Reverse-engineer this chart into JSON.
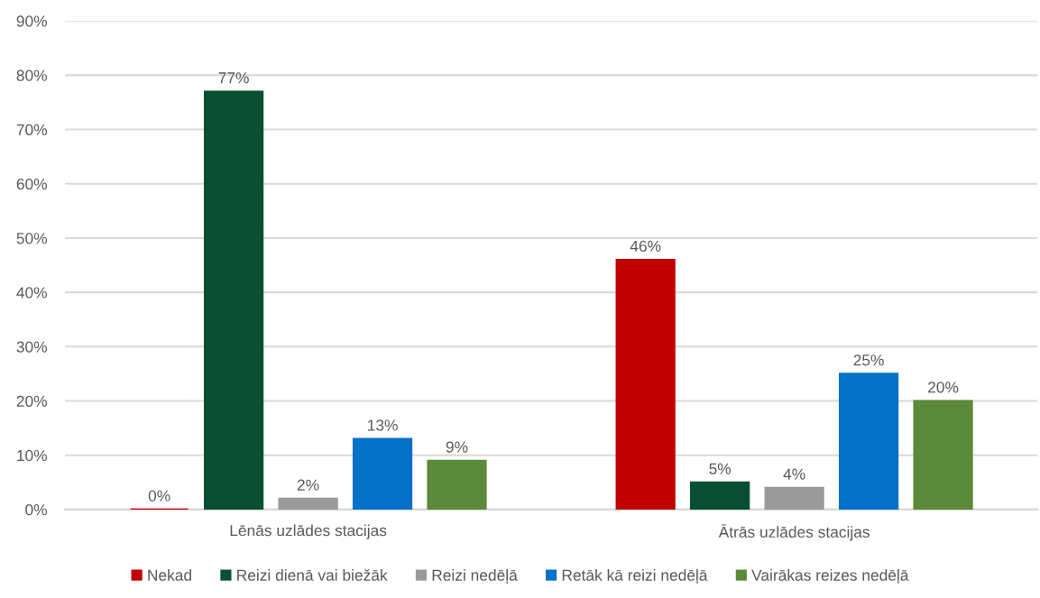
{
  "chart_data": {
    "type": "bar",
    "categories": [
      "Lēnās uzlādes stacijas",
      "Ātrās uzlādes stacijas"
    ],
    "series": [
      {
        "name": "Nekad",
        "color": "#c00000",
        "values": [
          0,
          46
        ],
        "value_labels": [
          "0%",
          "46%"
        ]
      },
      {
        "name": "Reizi dienā vai biežāk",
        "color": "#0a4f33",
        "values": [
          77,
          5
        ],
        "value_labels": [
          "77%",
          "5%"
        ]
      },
      {
        "name": "Reizi nedēļā",
        "color": "#9a9a9a",
        "values": [
          2,
          4
        ],
        "value_labels": [
          "2%",
          "4%"
        ]
      },
      {
        "name": "Retāk kā reizi nedēļā",
        "color": "#0571c8",
        "values": [
          13,
          25
        ],
        "value_labels": [
          "13%",
          "25%"
        ]
      },
      {
        "name": "Vairākas reizes nedēļā",
        "color": "#5b8a3a",
        "values": [
          9,
          20
        ],
        "value_labels": [
          "9%",
          "20%"
        ]
      }
    ],
    "ylim": [
      0,
      90
    ],
    "yticks": [
      {
        "value": 0,
        "label": "0%"
      },
      {
        "value": 10,
        "label": "10%"
      },
      {
        "value": 20,
        "label": "20%"
      },
      {
        "value": 30,
        "label": "30%"
      },
      {
        "value": 40,
        "label": "40%"
      },
      {
        "value": 50,
        "label": "50%"
      },
      {
        "value": 60,
        "label": "60%"
      },
      {
        "value": 70,
        "label": "70%"
      },
      {
        "value": 80,
        "label": "80%"
      },
      {
        "value": 90,
        "label": "90%"
      }
    ],
    "grid": "y",
    "legend": "bottom"
  }
}
